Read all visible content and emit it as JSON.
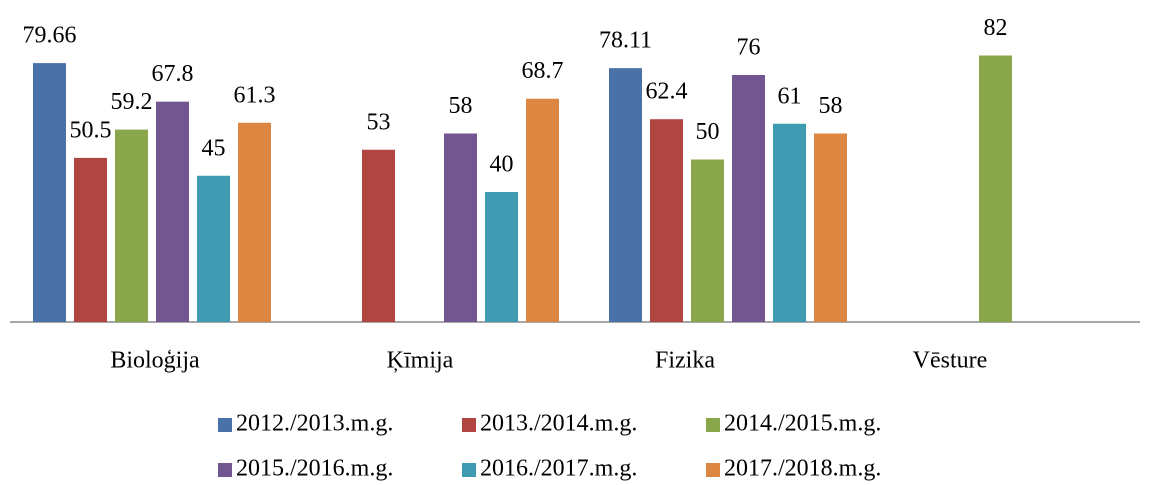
{
  "chart_data": {
    "type": "bar",
    "categories": [
      "Bioloģija",
      "Ķīmija",
      "Fizika",
      "Vēsture"
    ],
    "series": [
      {
        "name": "2012./2013.m.g.",
        "color": "#4a71a8",
        "values": [
          79.66,
          null,
          78.11,
          null
        ]
      },
      {
        "name": "2013./2014.m.g.",
        "color": "#b04542",
        "values": [
          50.5,
          53,
          62.4,
          null
        ]
      },
      {
        "name": "2014./2015.m.g.",
        "color": "#8aa64b",
        "values": [
          59.2,
          null,
          50,
          82
        ]
      },
      {
        "name": "2015./2016.m.g.",
        "color": "#715690",
        "values": [
          67.8,
          58,
          76,
          null
        ]
      },
      {
        "name": "2016./2017.m.g.",
        "color": "#3f9bb2",
        "values": [
          45,
          40,
          61,
          null
        ]
      },
      {
        "name": "2017./2018.m.g.",
        "color": "#dd8641",
        "values": [
          61.3,
          68.7,
          58,
          null
        ]
      }
    ],
    "ylim": [
      0,
      90
    ],
    "grid": false,
    "legend": "bottom"
  }
}
